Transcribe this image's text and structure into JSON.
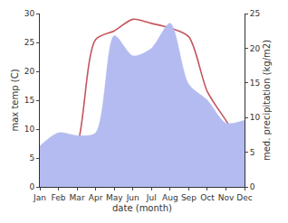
{
  "chart_data": {
    "type": "line",
    "x_label": "date (month)",
    "y_label": "max temp (C)",
    "y2_label": "med. precipitation (kg/m2)",
    "categories": [
      "Jan",
      "Feb",
      "Mar",
      "Apr",
      "May",
      "Jun",
      "Jul",
      "Aug",
      "Sep",
      "Oct",
      "Nov",
      "Dec"
    ],
    "series": [
      {
        "name": "med. precipitation",
        "type": "area",
        "axis": "y2",
        "color": "#b3bbf0",
        "values": [
          5.9,
          7.8,
          7.4,
          7.8,
          21.8,
          18.9,
          20,
          23.6,
          14.8,
          12.5,
          9.2,
          9.6
        ]
      },
      {
        "name": "max temp",
        "type": "line",
        "axis": "y",
        "color": "#c4555e",
        "values": [
          0.2,
          1.8,
          7,
          25.5,
          27,
          29,
          28.3,
          27.5,
          26,
          16.5,
          11.5,
          6.5
        ]
      }
    ],
    "ylim": [
      0,
      30
    ],
    "yticks": [
      0,
      5,
      10,
      15,
      20,
      25,
      30
    ],
    "y2lim": [
      0,
      25
    ],
    "y2ticks": [
      0,
      5,
      10,
      15,
      20,
      25
    ],
    "grid": false
  }
}
